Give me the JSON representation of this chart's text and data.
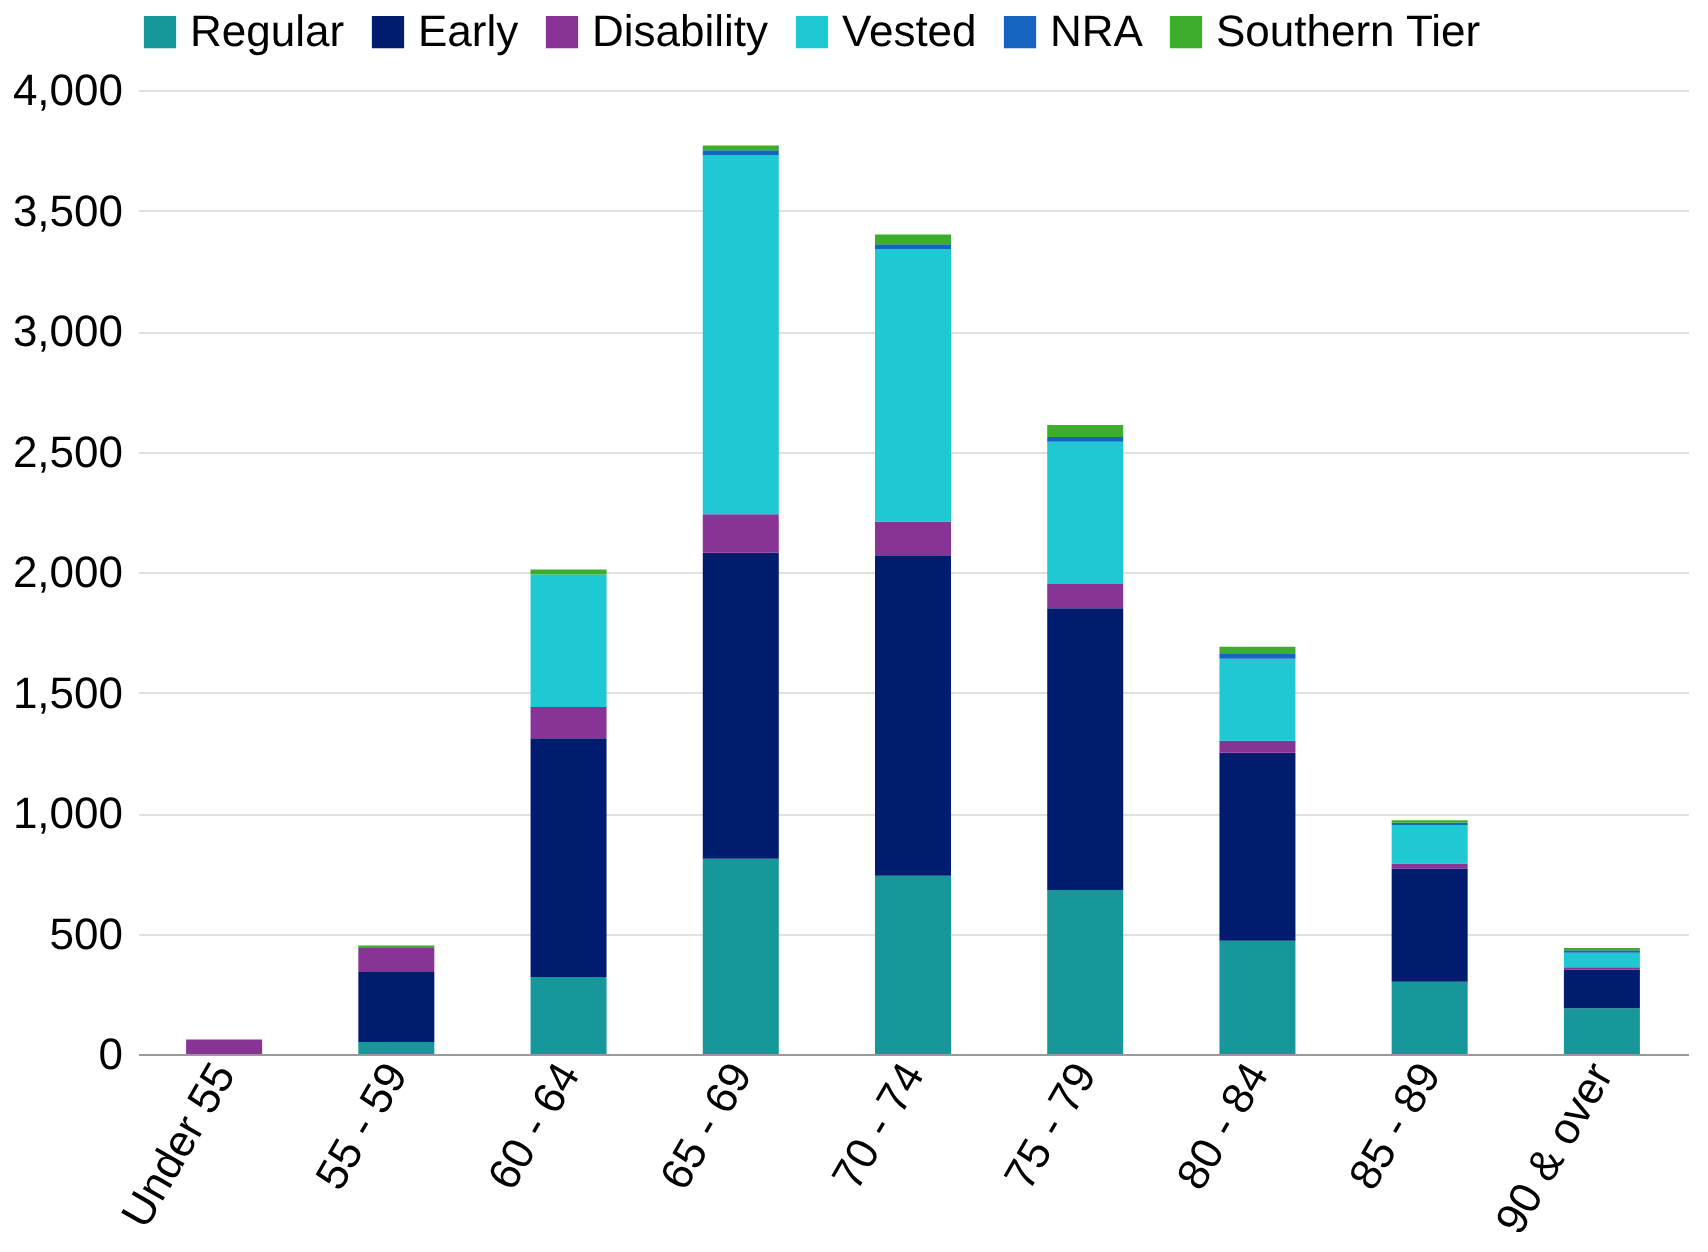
{
  "chart_data": {
    "type": "bar",
    "stacked": true,
    "categories": [
      "Under 55",
      "55 - 59",
      "60 - 64",
      "65 - 69",
      "70 - 74",
      "75 - 79",
      "80 - 84",
      "85 - 89",
      "90 & over"
    ],
    "series": [
      {
        "name": "Regular",
        "color": "#17979a",
        "values": [
          0,
          50,
          320,
          810,
          740,
          680,
          470,
          300,
          190
        ]
      },
      {
        "name": "Early",
        "color": "#001c6e",
        "values": [
          0,
          290,
          990,
          1270,
          1330,
          1170,
          780,
          470,
          160
        ]
      },
      {
        "name": "Disability",
        "color": "#883496",
        "values": [
          60,
          100,
          130,
          160,
          140,
          100,
          50,
          20,
          10
        ]
      },
      {
        "name": "Vested",
        "color": "#1fc9d3",
        "values": [
          0,
          0,
          550,
          1490,
          1130,
          590,
          340,
          160,
          60
        ]
      },
      {
        "name": "NRA",
        "color": "#1565c0",
        "values": [
          0,
          0,
          0,
          20,
          20,
          20,
          20,
          10,
          10
        ]
      },
      {
        "name": "Southern Tier",
        "color": "#3dae2b",
        "values": [
          0,
          10,
          20,
          20,
          40,
          50,
          30,
          10,
          10
        ]
      }
    ],
    "ylim": [
      0,
      4000
    ],
    "yticks": [
      0,
      500,
      {
        "value": 1000,
        "label": "1,000"
      },
      {
        "value": 1500,
        "label": "1,500"
      },
      {
        "value": 2000,
        "label": "2,000"
      },
      {
        "value": 2500,
        "label": "2,500"
      },
      {
        "value": 3000,
        "label": "3,000"
      },
      {
        "value": 3500,
        "label": "3,500"
      },
      {
        "value": 4000,
        "label": "4,000"
      }
    ],
    "grid": "y",
    "legend": "top"
  }
}
